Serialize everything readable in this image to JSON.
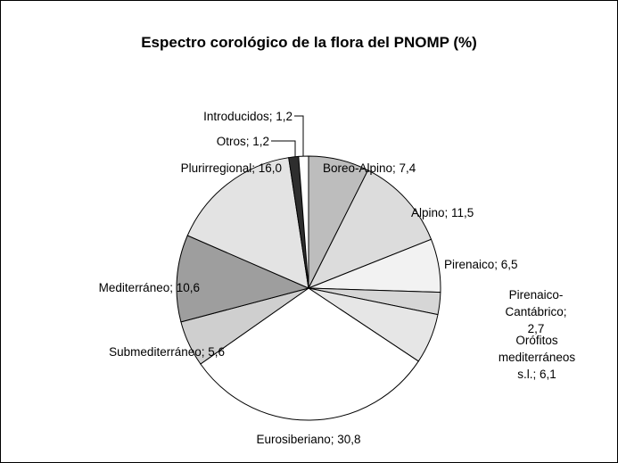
{
  "chart_data": {
    "type": "pie",
    "title": "Espectro corológico de la flora del PNOMP (%)",
    "values": [
      7.4,
      11.5,
      6.5,
      2.7,
      6.1,
      30.8,
      5.6,
      10.6,
      16.0,
      1.2,
      1.2
    ],
    "value_labels": [
      "Boreo-Alpino; 7,4",
      "Alpino; 11,5",
      "Pirenaico; 6,5",
      "Pirenaico-Cantábrico;\n2,7",
      "Orófitos\nmediterráneos s.l.; 6,1",
      "Eurosiberiano; 30,8",
      "Submediterráneo; 5,6",
      "Mediterráneo; 10,6",
      "Plurirregional; 16,0",
      "Otros; 1,2",
      "Introducidos; 1,2"
    ],
    "colors": [
      "#bdbdbd",
      "#dcdcdc",
      "#f2f2f2",
      "#d6d6d6",
      "#e6e6e6",
      "#ffffff",
      "#cfcfcf",
      "#9e9e9e",
      "#e3e3e3",
      "#2e2e2e",
      "#ffffff"
    ]
  }
}
